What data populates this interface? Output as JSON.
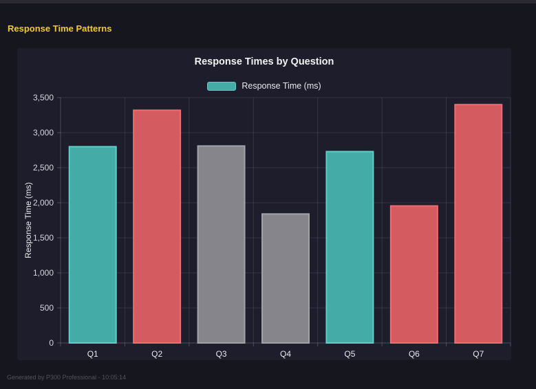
{
  "page": {
    "header_title": "Response Time Patterns",
    "footer_text": "Generated by P300 Professional - 10:05:14"
  },
  "colors": {
    "page_bg": "#16161f",
    "panel_bg": "#1d1d2c",
    "header_yellow": "#f0ca2f",
    "teal": "#45aba6",
    "teal_border": "#5ecfc8",
    "red": "#d45b60",
    "red_border": "#f26b71",
    "gray": "#85858b",
    "gray_border": "#a2a2a8",
    "grid_line": "rgba(220,220,240,0.12)",
    "axis_line": "rgba(220,220,240,0.25)",
    "tick_text": "#d6d6e0",
    "label_text": "#e8e8ee"
  },
  "chart_data": {
    "type": "bar",
    "title": "Response Times by Question",
    "legend": {
      "label": "Response Time (ms)",
      "color": "#45aba6",
      "border": "#5ecfc8",
      "position": "top"
    },
    "categories": [
      "Q1",
      "Q2",
      "Q3",
      "Q4",
      "Q5",
      "Q6",
      "Q7"
    ],
    "values": [
      2800,
      3320,
      2810,
      1840,
      2730,
      1955,
      3400
    ],
    "bar_fills": [
      "#45aba6",
      "#d45b60",
      "#85858b",
      "#85858b",
      "#45aba6",
      "#d45b60",
      "#d45b60"
    ],
    "bar_borders": [
      "#5ecfc8",
      "#f26b71",
      "#a2a2a8",
      "#a2a2a8",
      "#5ecfc8",
      "#f26b71",
      "#f26b71"
    ],
    "xlabel": "",
    "ylabel": "Response Time (ms)",
    "ylim": [
      0,
      3500
    ],
    "ytick_step": 500,
    "ytick_labels": [
      "0",
      "500",
      "1,000",
      "1,500",
      "2,000",
      "2,500",
      "3,000",
      "3,500"
    ],
    "grid": true
  }
}
